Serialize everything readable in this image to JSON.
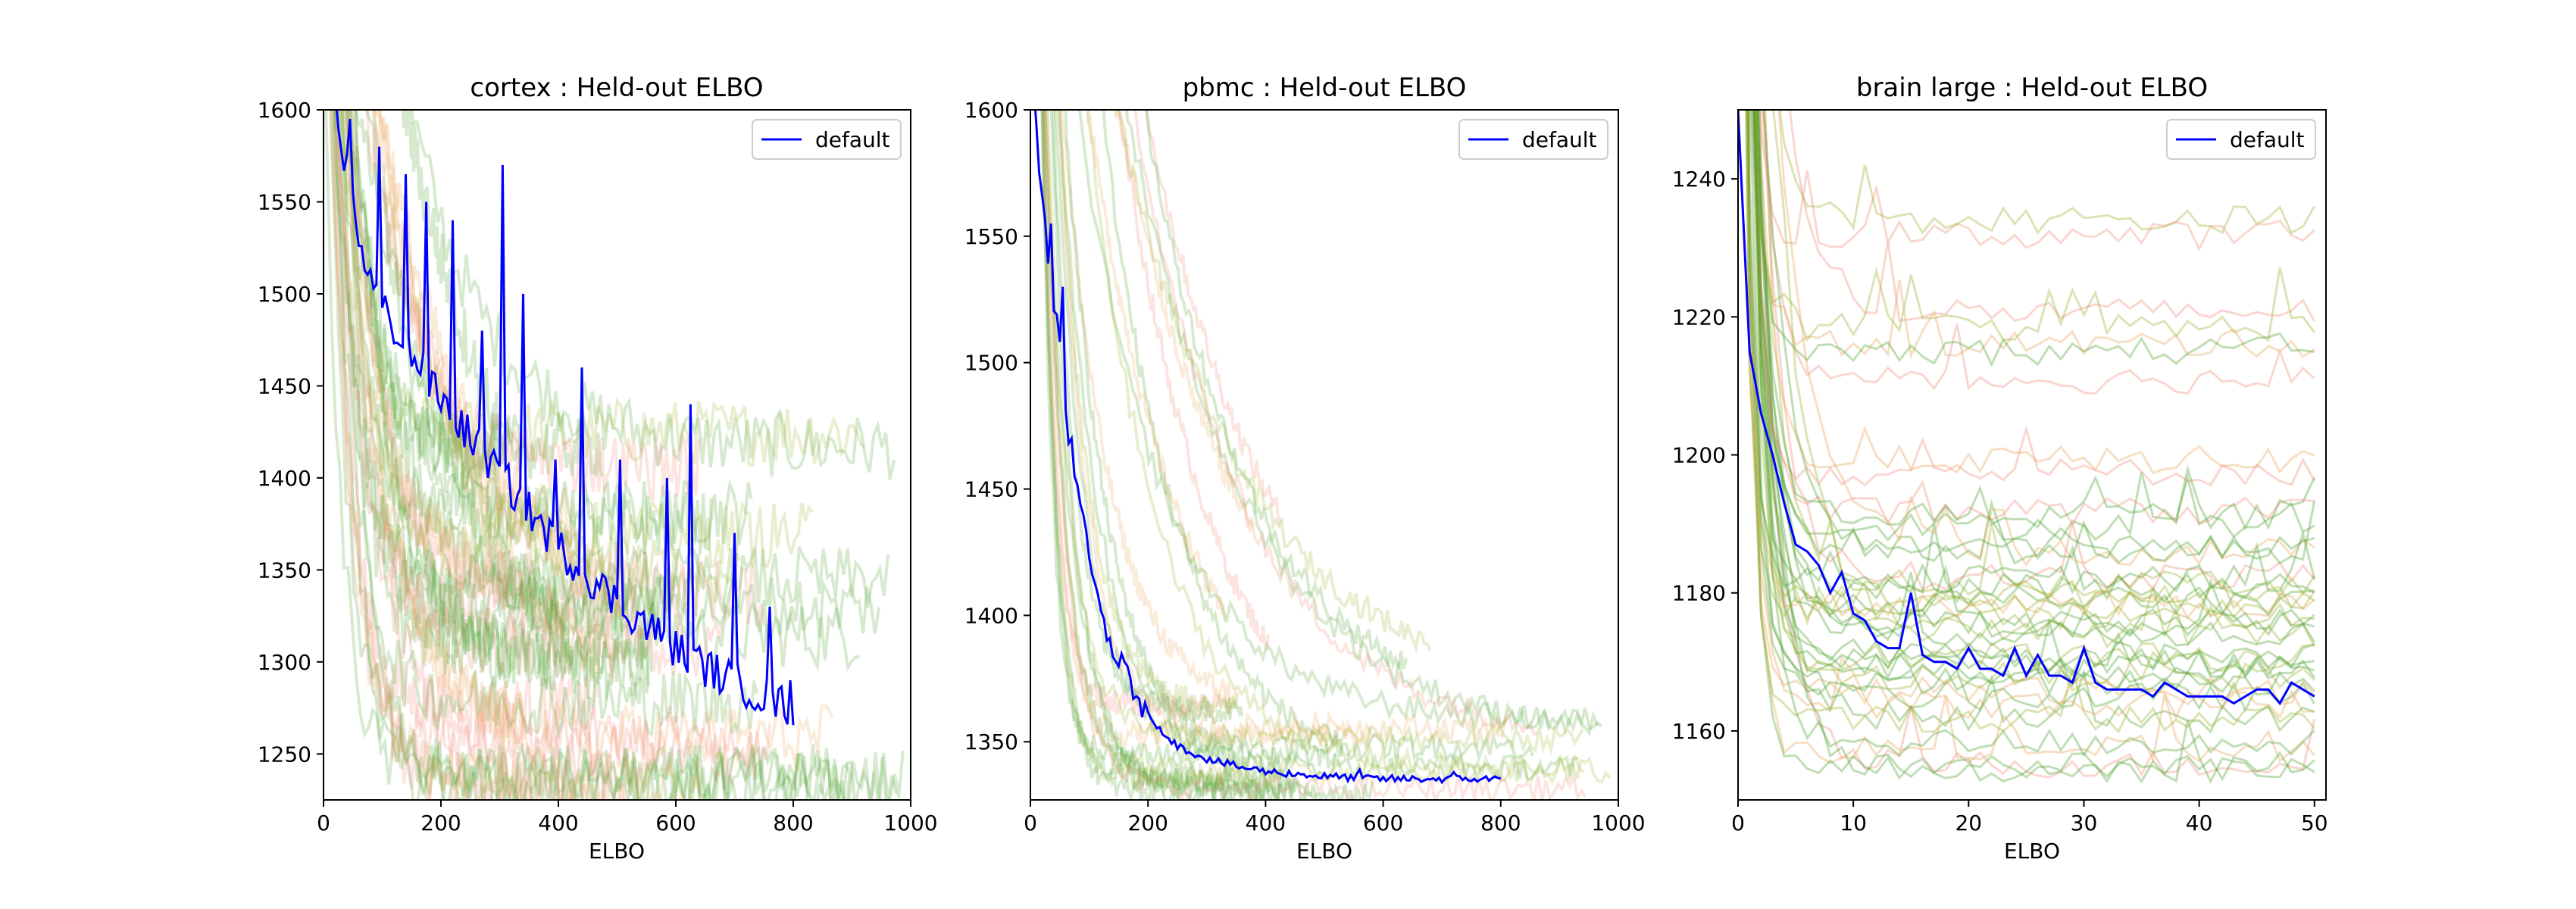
{
  "figure": {
    "background": "#ffffff",
    "colors": {
      "default": "#0000ff",
      "green_runs": "#4aa12a",
      "olive_runs": "#9ab02a",
      "red_runs": "#f08a78",
      "orange_runs": "#e6a455"
    }
  },
  "chart_data": [
    {
      "type": "line",
      "title": "cortex : Held-out ELBO",
      "xlabel": "ELBO",
      "ylabel": "",
      "xlim": [
        0,
        1000
      ],
      "ylim": [
        1225,
        1600
      ],
      "xticks": [
        0,
        200,
        400,
        600,
        800,
        1000
      ],
      "yticks": [
        1250,
        1300,
        1350,
        1400,
        1450,
        1500,
        1550,
        1600
      ],
      "legend": {
        "position": "top-right",
        "entries": [
          "default"
        ]
      },
      "grid": false,
      "series": [
        {
          "name": "default",
          "color": "#0000ff",
          "x": [
            0,
            10,
            20,
            40,
            60,
            80,
            100,
            120,
            150,
            200,
            250,
            300,
            350,
            400,
            450,
            500,
            550,
            600,
            650,
            700,
            750,
            800
          ],
          "y": [
            1650,
            1620,
            1600,
            1565,
            1530,
            1505,
            1490,
            1480,
            1465,
            1440,
            1420,
            1400,
            1380,
            1360,
            1345,
            1330,
            1318,
            1305,
            1295,
            1287,
            1279,
            1272
          ],
          "spikes": [
            [
              45,
              1595
            ],
            [
              95,
              1580
            ],
            [
              140,
              1565
            ],
            [
              175,
              1550
            ],
            [
              220,
              1540
            ],
            [
              270,
              1480
            ],
            [
              305,
              1570
            ],
            [
              340,
              1500
            ],
            [
              395,
              1410
            ],
            [
              440,
              1460
            ],
            [
              505,
              1410
            ],
            [
              585,
              1400
            ],
            [
              625,
              1440
            ],
            [
              700,
              1370
            ],
            [
              760,
              1330
            ],
            [
              795,
              1290
            ]
          ]
        }
      ],
      "background_runs": {
        "count": 40,
        "x_end_range": [
          250,
          1000
        ],
        "description_values": "decaying runs from above 1600 to between 1235 and 1420"
      }
    },
    {
      "type": "line",
      "title": "pbmc : Held-out ELBO",
      "xlabel": "ELBO",
      "ylabel": "",
      "xlim": [
        0,
        1000
      ],
      "ylim": [
        1327,
        1600
      ],
      "xticks": [
        0,
        200,
        400,
        600,
        800,
        1000
      ],
      "yticks": [
        1350,
        1400,
        1450,
        1500,
        1550,
        1600
      ],
      "legend": {
        "position": "top-right",
        "entries": [
          "default"
        ]
      },
      "grid": false,
      "series": [
        {
          "name": "default",
          "color": "#0000ff",
          "x": [
            0,
            10,
            20,
            30,
            40,
            50,
            60,
            80,
            100,
            120,
            150,
            200,
            250,
            300,
            350,
            400,
            500,
            600,
            700,
            800
          ],
          "y": [
            1620,
            1590,
            1560,
            1540,
            1525,
            1505,
            1480,
            1445,
            1420,
            1400,
            1380,
            1360,
            1348,
            1343,
            1340,
            1338,
            1336,
            1335,
            1335,
            1335
          ],
          "spikes": [
            [
              15,
              1575
            ],
            [
              35,
              1555
            ],
            [
              55,
              1530
            ],
            [
              70,
              1470
            ],
            [
              90,
              1440
            ],
            [
              130,
              1390
            ],
            [
              180,
              1368
            ],
            [
              230,
              1352
            ],
            [
              560,
              1339
            ],
            [
              720,
              1338
            ]
          ]
        }
      ],
      "background_runs": {
        "count": 30,
        "x_end_range": [
          300,
          1000
        ],
        "description_values": "decaying runs from above 1600 to between 1330 and 1380"
      }
    },
    {
      "type": "line",
      "title": "brain large : Held-out ELBO",
      "xlabel": "ELBO",
      "ylabel": "",
      "xlim": [
        0,
        51
      ],
      "ylim": [
        1150,
        1250
      ],
      "xticks": [
        0,
        10,
        20,
        30,
        40,
        50
      ],
      "yticks": [
        1160,
        1180,
        1200,
        1220,
        1240
      ],
      "legend": {
        "position": "top-right",
        "entries": [
          "default"
        ]
      },
      "grid": false,
      "series": [
        {
          "name": "default",
          "color": "#0000ff",
          "x": [
            0,
            1,
            2,
            3,
            4,
            5,
            6,
            7,
            8,
            9,
            10,
            11,
            12,
            13,
            14,
            15,
            16,
            17,
            18,
            19,
            20,
            21,
            22,
            23,
            24,
            25,
            26,
            27,
            28,
            29,
            30,
            31,
            32,
            33,
            34,
            35,
            36,
            37,
            38,
            39,
            40,
            41,
            42,
            43,
            44,
            45,
            46,
            47,
            48,
            49,
            50
          ],
          "y": [
            1250,
            1215,
            1206,
            1200,
            1193,
            1187,
            1186,
            1184,
            1180,
            1183,
            1177,
            1176,
            1173,
            1172,
            1172,
            1180,
            1171,
            1170,
            1170,
            1169,
            1172,
            1169,
            1169,
            1168,
            1172,
            1168,
            1171,
            1168,
            1168,
            1167,
            1172,
            1167,
            1166,
            1166,
            1166,
            1166,
            1165,
            1167,
            1166,
            1165,
            1165,
            1165,
            1165,
            1164,
            1165,
            1166,
            1166,
            1164,
            1167,
            1166,
            1165
          ]
        }
      ],
      "background_runs": {
        "count": 45,
        "x_end_range": [
          50,
          50
        ],
        "description_values": "runs dropping from above 1250 then flattening between 1155 and 1237"
      }
    }
  ]
}
